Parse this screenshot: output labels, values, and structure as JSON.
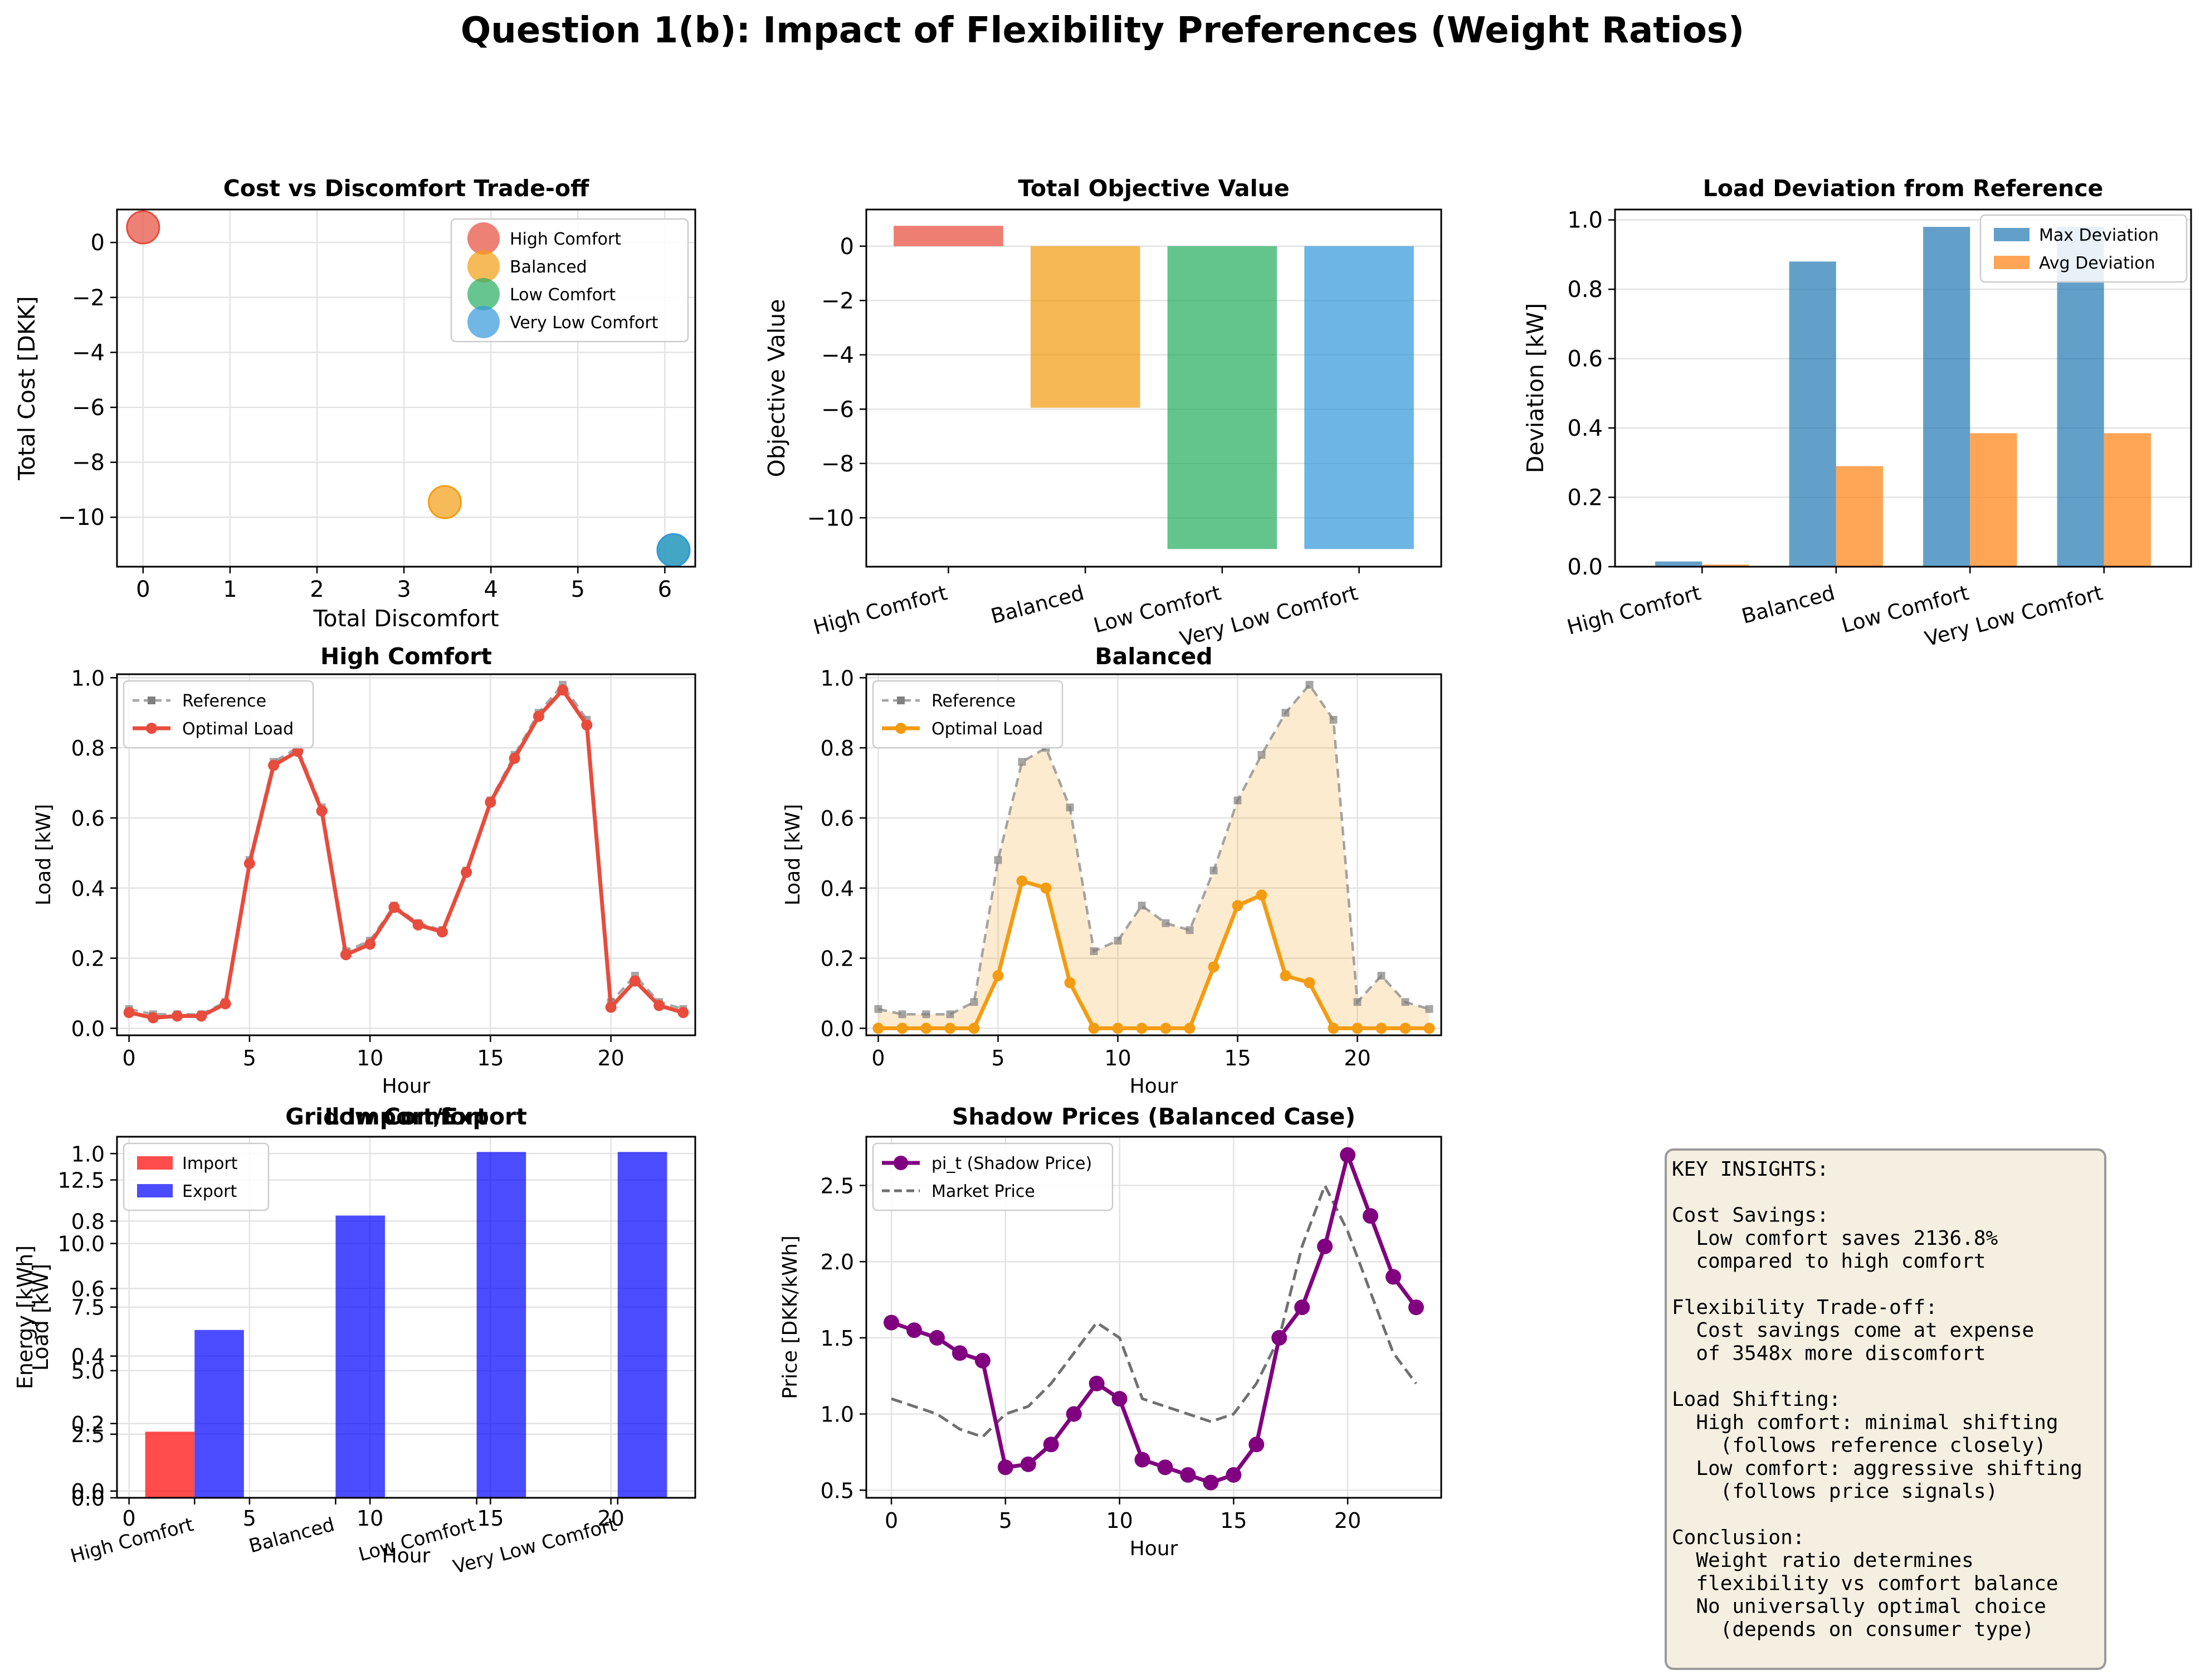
{
  "figure": {
    "title": "Question 1(b): Impact of Flexibility Preferences (Weight Ratios)"
  },
  "chart_data": [
    {
      "id": "tradeoff",
      "type": "scatter",
      "title": "Cost vs Discomfort Trade-off",
      "xlabel": "Total Discomfort",
      "ylabel": "Total Cost [DKK]",
      "xlim": [
        -0.3,
        6.35
      ],
      "ylim": [
        -11.8,
        1.2
      ],
      "xticks": [
        0,
        1,
        2,
        3,
        4,
        5,
        6
      ],
      "yticks": [
        0,
        -2,
        -4,
        -6,
        -8,
        -10
      ],
      "legend_position": "upper-right",
      "grid": true,
      "series": [
        {
          "name": "High Comfort",
          "x": 0.0,
          "y": 0.55,
          "color": "#e74c3c"
        },
        {
          "name": "Balanced",
          "x": 3.47,
          "y": -9.45,
          "color": "#f39c12"
        },
        {
          "name": "Low Comfort",
          "x": 6.1,
          "y": -11.2,
          "color": "#27ae60"
        },
        {
          "name": "Very Low Comfort",
          "x": 6.1,
          "y": -11.2,
          "color": "#3498db"
        }
      ]
    },
    {
      "id": "objective",
      "type": "bar",
      "title": "Total Objective Value",
      "ylabel": "Objective Value",
      "ylim": [
        -11.8,
        1.35
      ],
      "yticks": [
        0,
        -2,
        -4,
        -6,
        -8,
        -10
      ],
      "categories": [
        "High Comfort",
        "Balanced",
        "Low Comfort",
        "Very Low Comfort"
      ],
      "values": [
        0.75,
        -5.95,
        -11.15,
        -11.15
      ],
      "colors": [
        "#e74c3c",
        "#f39c12",
        "#27ae60",
        "#3498db"
      ],
      "grid": true
    },
    {
      "id": "deviation",
      "type": "bar",
      "title": "Load Deviation from Reference",
      "ylabel": "Deviation [kW]",
      "ylim": [
        0,
        1.03
      ],
      "yticks": [
        0.0,
        0.2,
        0.4,
        0.6,
        0.8,
        1.0
      ],
      "categories": [
        "High Comfort",
        "Balanced",
        "Low Comfort",
        "Very Low Comfort"
      ],
      "legend_position": "upper-right",
      "grid": true,
      "series": [
        {
          "name": "Max Deviation",
          "values": [
            0.015,
            0.88,
            0.98,
            0.98
          ],
          "color": "#1f77b4"
        },
        {
          "name": "Avg Deviation",
          "values": [
            0.006,
            0.29,
            0.385,
            0.385
          ],
          "color": "#ff7f0e"
        }
      ]
    },
    {
      "id": "high-comfort",
      "type": "line",
      "title": "High Comfort",
      "xlabel": "Hour",
      "ylabel": "Load [kW]",
      "xlim": [
        -0.5,
        23.5
      ],
      "ylim": [
        -0.02,
        1.01
      ],
      "xticks": [
        0,
        5,
        10,
        15,
        20
      ],
      "yticks": [
        0.0,
        0.2,
        0.4,
        0.6,
        0.8,
        1.0
      ],
      "legend_position": "upper-left",
      "grid": true,
      "x": [
        0,
        1,
        2,
        3,
        4,
        5,
        6,
        7,
        8,
        9,
        10,
        11,
        12,
        13,
        14,
        15,
        16,
        17,
        18,
        19,
        20,
        21,
        22,
        23
      ],
      "series": [
        {
          "name": "Reference",
          "values": [
            0.055,
            0.04,
            0.04,
            0.04,
            0.075,
            0.48,
            0.76,
            0.8,
            0.63,
            0.22,
            0.25,
            0.35,
            0.3,
            0.28,
            0.45,
            0.65,
            0.78,
            0.9,
            0.98,
            0.88,
            0.075,
            0.15,
            0.075,
            0.055
          ],
          "color": "#808080"
        },
        {
          "name": "Optimal Load",
          "values": [
            0.045,
            0.03,
            0.035,
            0.035,
            0.07,
            0.47,
            0.75,
            0.79,
            0.62,
            0.21,
            0.24,
            0.345,
            0.295,
            0.275,
            0.445,
            0.645,
            0.77,
            0.89,
            0.965,
            0.865,
            0.06,
            0.135,
            0.065,
            0.045
          ],
          "color": "#e74c3c"
        }
      ]
    },
    {
      "id": "balanced",
      "type": "line",
      "title": "Balanced",
      "xlabel": "Hour",
      "ylabel": "Load [kW]",
      "xlim": [
        -0.5,
        23.5
      ],
      "ylim": [
        -0.02,
        1.01
      ],
      "xticks": [
        0,
        5,
        10,
        15,
        20
      ],
      "yticks": [
        0.0,
        0.2,
        0.4,
        0.6,
        0.8,
        1.0
      ],
      "legend_position": "upper-left",
      "grid": true,
      "x": [
        0,
        1,
        2,
        3,
        4,
        5,
        6,
        7,
        8,
        9,
        10,
        11,
        12,
        13,
        14,
        15,
        16,
        17,
        18,
        19,
        20,
        21,
        22,
        23
      ],
      "series": [
        {
          "name": "Reference",
          "values": [
            0.055,
            0.04,
            0.04,
            0.04,
            0.075,
            0.48,
            0.76,
            0.8,
            0.63,
            0.22,
            0.25,
            0.35,
            0.3,
            0.28,
            0.45,
            0.65,
            0.78,
            0.9,
            0.98,
            0.88,
            0.075,
            0.15,
            0.075,
            0.055
          ],
          "color": "#808080"
        },
        {
          "name": "Optimal Load",
          "values": [
            0,
            0,
            0,
            0,
            0,
            0.15,
            0.42,
            0.4,
            0.13,
            0,
            0,
            0,
            0,
            0,
            0.175,
            0.35,
            0.38,
            0.15,
            0.13,
            0,
            0,
            0,
            0,
            0
          ],
          "color": "#f39c12"
        }
      ]
    },
    {
      "id": "grid",
      "type": "bar",
      "title": "Grid Import/Export",
      "overlapped_title": "Low Comfort",
      "xlabel": "Hour",
      "ylabel": "Energy [kWh]",
      "overlapped_ylabel": "Load [kW]",
      "ylim": [
        0,
        14.2
      ],
      "yticks": [
        0.0,
        2.5,
        5.0,
        7.5,
        10.0,
        12.5
      ],
      "categories": [
        "High Comfort",
        "Balanced",
        "Low Comfort",
        "Very Low Comfort"
      ],
      "legend_position": "upper-left",
      "series": [
        {
          "name": "Import",
          "values": [
            2.6,
            0,
            0,
            0
          ],
          "color": "#ff0000"
        },
        {
          "name": "Export",
          "values": [
            6.6,
            11.1,
            13.6,
            13.6
          ],
          "color": "#0000ff"
        }
      ],
      "overlapped_axes": {
        "xticks": [
          0,
          5,
          10,
          15,
          20
        ],
        "yticks": [
          0.0,
          0.2,
          0.4,
          0.6,
          0.8,
          1.0
        ],
        "xlim": [
          -0.5,
          23.5
        ],
        "ylim": [
          -0.02,
          1.05
        ]
      }
    },
    {
      "id": "shadow",
      "type": "line",
      "title": "Shadow Prices (Balanced Case)",
      "xlabel": "Hour",
      "ylabel": "Price [DKK/kWh]",
      "xlim": [
        -1.1,
        24.1
      ],
      "ylim": [
        0.45,
        2.82
      ],
      "xticks": [
        0,
        5,
        10,
        15,
        20
      ],
      "yticks": [
        0.5,
        1.0,
        1.5,
        2.0,
        2.5
      ],
      "legend_position": "upper-left",
      "grid": true,
      "x": [
        0,
        1,
        2,
        3,
        4,
        5,
        6,
        7,
        8,
        9,
        10,
        11,
        12,
        13,
        14,
        15,
        16,
        17,
        18,
        19,
        20,
        21,
        22,
        23
      ],
      "series": [
        {
          "name": "pi_t (Shadow Price)",
          "values": [
            1.6,
            1.55,
            1.5,
            1.4,
            1.35,
            0.65,
            0.67,
            0.8,
            1.0,
            1.2,
            1.1,
            0.7,
            0.65,
            0.6,
            0.55,
            0.6,
            0.8,
            1.5,
            1.7,
            2.1,
            2.7,
            2.3,
            1.9,
            1.7
          ],
          "color": "#800080"
        },
        {
          "name": "Market Price",
          "values": [
            1.1,
            1.05,
            1.0,
            0.9,
            0.85,
            1.0,
            1.05,
            1.2,
            1.4,
            1.6,
            1.5,
            1.1,
            1.05,
            1.0,
            0.95,
            1.0,
            1.2,
            1.5,
            2.1,
            2.5,
            2.2,
            1.8,
            1.4,
            1.2
          ],
          "color": "#707070"
        }
      ]
    }
  ],
  "insights": {
    "lines": [
      "KEY INSIGHTS:",
      "",
      "Cost Savings:",
      "  Low comfort saves 2136.8%",
      "  compared to high comfort",
      "",
      "Flexibility Trade-off:",
      "  Cost savings come at expense",
      "  of 3548x more discomfort",
      "",
      "Load Shifting:",
      "  High comfort: minimal shifting",
      "    (follows reference closely)",
      "  Low comfort: aggressive shifting",
      "    (follows price signals)",
      "",
      "Conclusion:",
      "  Weight ratio determines",
      "  flexibility vs comfort balance",
      "  No universally optimal choice",
      "    (depends on consumer type)"
    ]
  }
}
